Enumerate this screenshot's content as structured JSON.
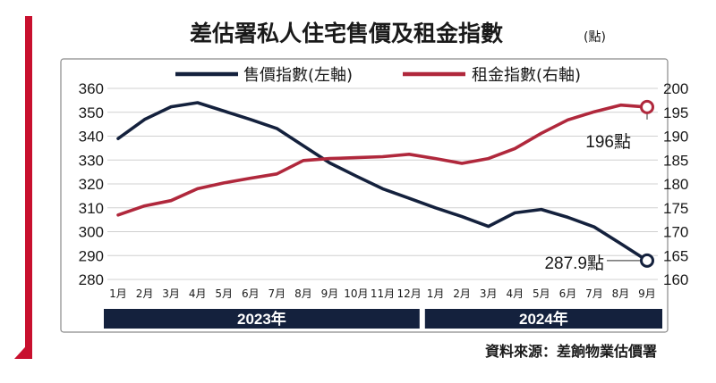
{
  "chart_data": {
    "type": "line",
    "title": "差估署私人住宅售價及租金指數",
    "unit": "(點)",
    "categories": [
      "1月",
      "2月",
      "3月",
      "4月",
      "5月",
      "6月",
      "7月",
      "8月",
      "9月",
      "10月",
      "11月",
      "12月",
      "1月",
      "2月",
      "3月",
      "4月",
      "5月",
      "6月",
      "7月",
      "8月",
      "9月"
    ],
    "year_groups": [
      {
        "label": "2023年",
        "start": 0,
        "end": 11
      },
      {
        "label": "2024年",
        "start": 12,
        "end": 20
      }
    ],
    "left_axis": {
      "ylim": [
        280,
        360
      ],
      "ticks": [
        "360",
        "350",
        "340",
        "330",
        "320",
        "310",
        "300",
        "290",
        "280"
      ]
    },
    "right_axis": {
      "ylim": [
        160,
        200
      ],
      "ticks": [
        "200",
        "195",
        "190",
        "185",
        "180",
        "175",
        "170",
        "165",
        "160"
      ]
    },
    "series": [
      {
        "name": "售價指數(左軸)",
        "axis": "left",
        "color": "#14213d",
        "values": [
          339.0,
          347.0,
          352.3,
          354.0,
          350.5,
          347.0,
          343.2,
          336.0,
          328.8,
          323.3,
          318.0,
          314.0,
          310.0,
          306.3,
          302.2,
          307.9,
          309.3,
          306.0,
          302.0,
          295.0,
          287.9
        ]
      },
      {
        "name": "租金指數(右軸)",
        "axis": "right",
        "color": "#b0283c",
        "values": [
          173.5,
          175.4,
          176.5,
          179.0,
          180.2,
          181.2,
          182.1,
          184.9,
          185.3,
          185.5,
          185.7,
          186.2,
          185.3,
          184.3,
          185.3,
          187.4,
          190.6,
          193.4,
          195.1,
          196.5,
          196.1
        ]
      }
    ],
    "annotations": [
      {
        "text": "196點",
        "series": 1,
        "index": 20
      },
      {
        "text": "287.9點",
        "series": 0,
        "index": 20
      }
    ],
    "grid": true,
    "legend_position": "top"
  },
  "source": "資料來源：差餉物業估價署",
  "colors": {
    "accent": "#c8102e",
    "navy": "#14213d",
    "rent": "#b0283c"
  }
}
